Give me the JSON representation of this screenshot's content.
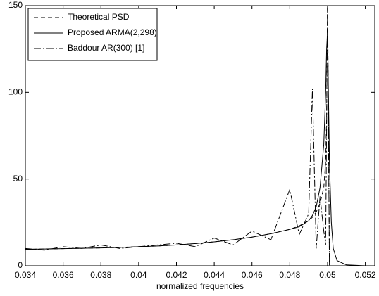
{
  "chart_data": {
    "type": "line",
    "xlabel": "normalized frequencies",
    "x": [
      0.034,
      0.035,
      0.036,
      0.037,
      0.038,
      0.039,
      0.04,
      0.041,
      0.042,
      0.043,
      0.044,
      0.045,
      0.046,
      0.047,
      0.048,
      0.0485,
      0.049,
      0.0492,
      0.0494,
      0.0496,
      0.0498,
      0.0499,
      0.04995,
      0.05,
      0.0501,
      0.0502,
      0.0503,
      0.0505,
      0.051,
      0.052,
      0.0525
    ],
    "series": [
      {
        "name": "Theoretical PSD",
        "color": "#000000",
        "style": "dashed",
        "values": [
          9.5,
          9.7,
          9.9,
          10.1,
          10.3,
          10.6,
          11,
          11.4,
          12,
          12.8,
          13.8,
          15,
          16.5,
          18.5,
          21,
          23,
          26,
          28,
          31,
          36,
          45,
          60,
          85,
          160,
          0,
          0,
          0,
          0,
          0,
          0,
          0
        ]
      },
      {
        "name": "Proposed ARMA(2,298)",
        "color": "#000000",
        "style": "solid",
        "values": [
          9.5,
          9.7,
          9.9,
          10.1,
          10.3,
          10.6,
          11,
          11.4,
          12,
          12.8,
          13.8,
          15,
          16.5,
          18.5,
          21,
          22.5,
          26,
          29,
          34,
          45,
          70,
          100,
          125,
          135,
          60,
          25,
          10,
          3,
          0.5,
          0,
          0
        ]
      },
      {
        "name": "Baddour AR(300) [1]",
        "color": "#000000",
        "style": "dashdot",
        "values": [
          10,
          9,
          11,
          10,
          12,
          10,
          11,
          12,
          13,
          11,
          16,
          12,
          20,
          15,
          44,
          18,
          30,
          102,
          10,
          40,
          20,
          12,
          80,
          150,
          0,
          0,
          0,
          0,
          0,
          0,
          0
        ]
      }
    ],
    "xlim": [
      0.034,
      0.0525
    ],
    "ylim": [
      0,
      150
    ],
    "xticks": [
      0.034,
      0.036,
      0.038,
      0.04,
      0.042,
      0.044,
      0.046,
      0.048,
      0.05,
      0.052
    ],
    "yticks": [
      0,
      50,
      100,
      150
    ],
    "legend": "upper left",
    "grid": false
  }
}
